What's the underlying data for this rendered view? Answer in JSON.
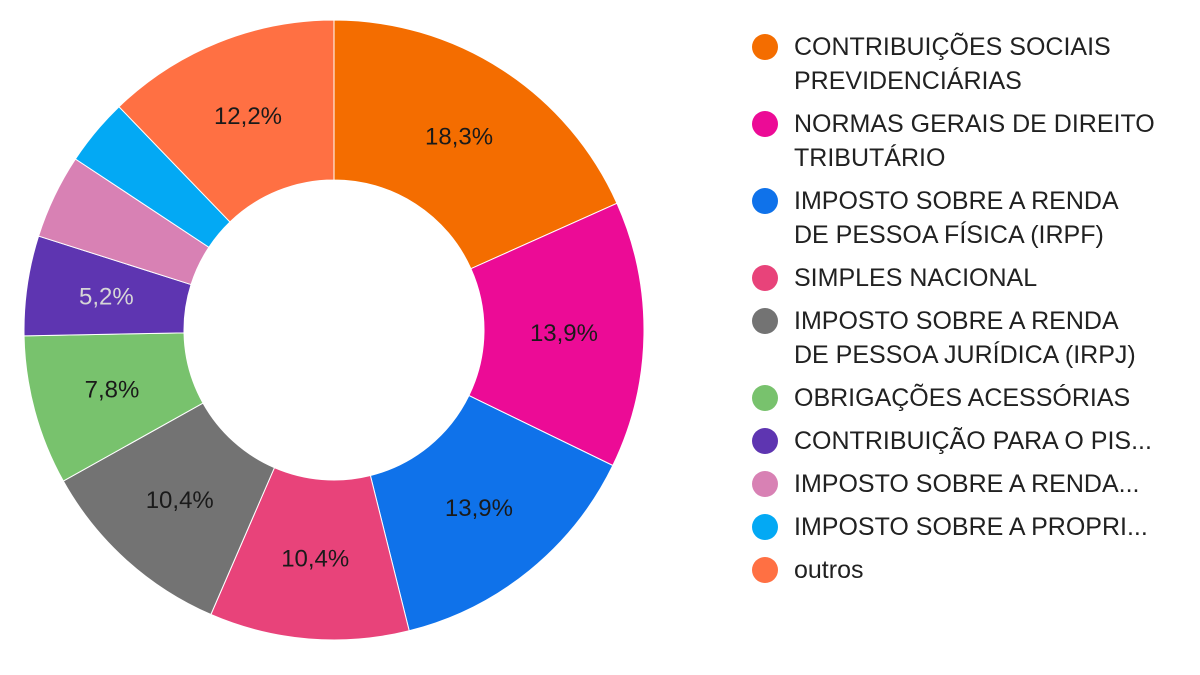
{
  "chart_data": {
    "type": "pie",
    "donut": true,
    "legend_position": "right",
    "slices": [
      {
        "label": [
          "CONTRIBUIÇÕES SOCIAIS",
          "PREVIDENCIÁRIAS"
        ],
        "value": 18.3,
        "value_label": "18,3%",
        "color": "#f46d00",
        "label_color": "#1a1a1a"
      },
      {
        "label": [
          "NORMAS GERAIS DE DIREITO",
          "TRIBUTÁRIO"
        ],
        "value": 13.9,
        "value_label": "13,9%",
        "color": "#ec0b96",
        "label_color": "#1a1a1a"
      },
      {
        "label": [
          "IMPOSTO SOBRE A RENDA",
          "DE PESSOA FÍSICA (IRPF)"
        ],
        "value": 13.9,
        "value_label": "13,9%",
        "color": "#0f72ea",
        "label_color": "#1a1a1a"
      },
      {
        "label": [
          "SIMPLES NACIONAL"
        ],
        "value": 10.4,
        "value_label": "10,4%",
        "color": "#e8437a",
        "label_color": "#1a1a1a"
      },
      {
        "label": [
          "IMPOSTO SOBRE A RENDA",
          "DE PESSOA JURÍDICA (IRPJ)"
        ],
        "value": 10.4,
        "value_label": "10,4%",
        "color": "#737373",
        "label_color": "#1a1a1a"
      },
      {
        "label": [
          "OBRIGAÇÕES ACESSÓRIAS"
        ],
        "value": 7.8,
        "value_label": "7,8%",
        "color": "#78c26d",
        "label_color": "#1a1a1a"
      },
      {
        "label": [
          "CONTRIBUIÇÃO PARA O PIS..."
        ],
        "value": 5.2,
        "value_label": "5,2%",
        "color": "#5e35b1",
        "label_color": "#d6d6d6"
      },
      {
        "label": [
          "IMPOSTO SOBRE A RENDA..."
        ],
        "value": 4.4,
        "value_label": "",
        "color": "#d881b4",
        "label_color": "#1a1a1a"
      },
      {
        "label": [
          "IMPOSTO SOBRE A PROPRI..."
        ],
        "value": 3.5,
        "value_label": "",
        "color": "#03a9f4",
        "label_color": "#1a1a1a"
      },
      {
        "label": [
          "outros"
        ],
        "value": 12.2,
        "value_label": "12,2%",
        "color": "#ff7043",
        "label_color": "#1a1a1a"
      }
    ]
  }
}
